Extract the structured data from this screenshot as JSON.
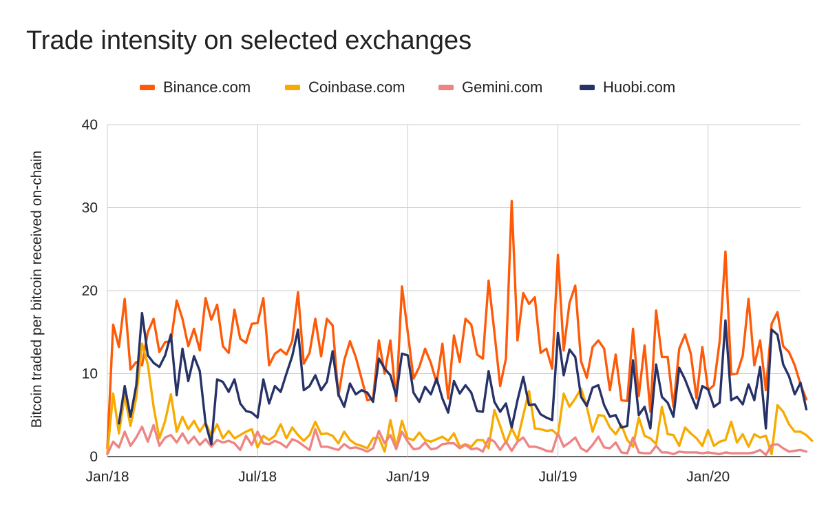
{
  "chart_data": {
    "type": "line",
    "title": "Trade intensity on selected exchanges",
    "xlabel": "",
    "ylabel": "Bitcoin traded per bitcoin received on-chain",
    "ylim": [
      0,
      40
    ],
    "yticks": [
      0,
      10,
      20,
      30,
      40
    ],
    "xticks": [
      {
        "label": "Jan/18",
        "week": 0
      },
      {
        "label": "Jul/18",
        "week": 26
      },
      {
        "label": "Jan/19",
        "week": 52
      },
      {
        "label": "Jul/19",
        "week": 78
      },
      {
        "label": "Jan/20",
        "week": 104
      }
    ],
    "x_axis_range_weeks": [
      0,
      120
    ],
    "grid": true,
    "legend_position": "top-center",
    "series": [
      {
        "name": "Binance.com",
        "color": "#fe5a08",
        "values": [
          1.0,
          15.9,
          13.2,
          19.0,
          10.5,
          11.4,
          11.0,
          15.0,
          16.6,
          12.6,
          13.8,
          13.9,
          18.8,
          16.6,
          13.3,
          15.4,
          12.8,
          19.1,
          16.5,
          18.3,
          13.3,
          12.5,
          17.7,
          14.2,
          13.7,
          16.0,
          16.1,
          19.1,
          11.0,
          12.4,
          12.9,
          12.3,
          13.9,
          19.8,
          11.2,
          12.5,
          16.6,
          12.1,
          16.6,
          15.8,
          7.3,
          11.6,
          13.9,
          12.0,
          9.4,
          6.8,
          7.0,
          14.0,
          10.0,
          14.0,
          6.7,
          20.5,
          15.0,
          9.4,
          10.8,
          13.0,
          11.3,
          8.9,
          13.6,
          7.0,
          14.6,
          11.4,
          16.6,
          15.9,
          12.3,
          11.8,
          21.2,
          15.0,
          8.5,
          11.8,
          30.8,
          14.0,
          19.7,
          18.4,
          19.2,
          12.5,
          13.0,
          10.6,
          24.3,
          12.8,
          18.5,
          20.6,
          11.5,
          9.5,
          13.2,
          14.0,
          13.0,
          8.0,
          12.3,
          6.8,
          6.7,
          15.4,
          7.3,
          13.4,
          5.4,
          17.6,
          12.0,
          12.0,
          6.0,
          13.0,
          14.7,
          12.4,
          7.0,
          13.2,
          8.0,
          8.6,
          13.9,
          24.7,
          9.9,
          10.0,
          12.2,
          19.0,
          11.0,
          14.0,
          8.0,
          16.0,
          17.4,
          13.3,
          12.6,
          11.0,
          8.7,
          6.9
        ],
        "x_start_week": 0,
        "x_step_weeks": 1
      },
      {
        "name": "Coinbase.com",
        "color": "#f7ab00",
        "values": [
          0.4,
          7.6,
          2.8,
          7.3,
          3.7,
          7.1,
          13.6,
          11.1,
          6.0,
          2.2,
          4.3,
          7.5,
          3.0,
          4.8,
          3.3,
          4.3,
          3.0,
          4.1,
          2.5,
          3.9,
          2.2,
          3.1,
          2.2,
          2.6,
          3.0,
          3.3,
          1.1,
          2.5,
          2.0,
          2.5,
          3.9,
          2.2,
          3.5,
          2.6,
          1.9,
          2.6,
          4.2,
          2.7,
          2.8,
          2.5,
          1.6,
          3.0,
          2.0,
          1.5,
          1.3,
          1.0,
          2.2,
          2.3,
          0.6,
          4.4,
          1.1,
          4.3,
          2.2,
          2.0,
          2.9,
          2.0,
          1.8,
          2.1,
          2.4,
          1.9,
          2.8,
          1.2,
          1.5,
          1.2,
          2.0,
          2.0,
          1.0,
          5.6,
          3.7,
          1.6,
          3.4,
          2.0,
          5.0,
          7.9,
          3.4,
          3.3,
          3.1,
          3.2,
          2.6,
          7.6,
          6.0,
          7.0,
          8.2,
          6.0,
          3.0,
          5.0,
          4.9,
          3.5,
          2.7,
          3.8,
          2.0,
          1.2,
          4.7,
          2.5,
          2.2,
          1.5,
          6.0,
          2.7,
          2.6,
          1.3,
          3.5,
          2.8,
          2.2,
          1.3,
          3.2,
          1.3,
          1.8,
          2.0,
          4.2,
          1.7,
          2.7,
          1.2,
          2.7,
          2.3,
          2.5,
          0.3,
          6.2,
          5.4,
          3.9,
          3.0,
          3.0,
          2.6,
          1.9
        ],
        "x_start_week": 0,
        "x_step_weeks": 1
      },
      {
        "name": "Gemini.com",
        "color": "#ee8484",
        "values": [
          0.3,
          1.8,
          1.1,
          3.0,
          1.3,
          2.3,
          3.6,
          1.8,
          3.8,
          1.3,
          2.3,
          2.6,
          1.7,
          2.8,
          1.6,
          2.4,
          1.4,
          2.1,
          1.2,
          2.0,
          1.7,
          1.9,
          1.6,
          0.8,
          2.5,
          1.4,
          3.0,
          1.6,
          1.5,
          1.9,
          1.6,
          1.1,
          2.1,
          1.8,
          1.3,
          0.8,
          3.3,
          1.2,
          1.2,
          1.0,
          0.8,
          1.5,
          1.0,
          1.1,
          0.9,
          0.6,
          1.0,
          3.1,
          1.6,
          2.6,
          0.9,
          3.0,
          1.8,
          0.9,
          1.0,
          1.7,
          0.9,
          1.0,
          1.5,
          1.6,
          1.6,
          1.0,
          1.4,
          0.9,
          1.0,
          0.6,
          2.2,
          1.8,
          0.8,
          1.8,
          0.7,
          1.8,
          2.3,
          1.2,
          1.2,
          1.0,
          0.7,
          0.6,
          2.8,
          1.2,
          1.7,
          2.3,
          1.0,
          0.6,
          1.4,
          2.4,
          1.1,
          1.0,
          1.7,
          0.5,
          0.4,
          2.3,
          0.5,
          0.4,
          0.4,
          1.3,
          0.5,
          0.5,
          0.3,
          0.6,
          0.5,
          0.5,
          0.5,
          0.4,
          0.5,
          0.4,
          0.3,
          0.5,
          0.4,
          0.4,
          0.4,
          0.4,
          0.5,
          0.8,
          0.2,
          1.4,
          1.5,
          1.0,
          0.6,
          0.7,
          0.8,
          0.6
        ],
        "x_start_week": 0,
        "x_step_weeks": 1
      },
      {
        "name": "Huobi.com",
        "color": "#263268",
        "values": [
          null,
          null,
          4.0,
          8.5,
          4.8,
          8.6,
          17.3,
          12.2,
          11.3,
          10.8,
          12.2,
          14.7,
          7.4,
          13.0,
          9.1,
          12.1,
          10.3,
          4.0,
          1.5,
          9.3,
          9.0,
          7.8,
          9.3,
          6.4,
          5.5,
          5.3,
          4.7,
          9.3,
          6.4,
          8.5,
          7.8,
          10.0,
          12.1,
          15.3,
          8.0,
          8.5,
          9.8,
          8.0,
          9.0,
          12.7,
          7.5,
          6.0,
          8.8,
          7.5,
          8.0,
          7.7,
          6.6,
          11.8,
          10.6,
          9.8,
          7.3,
          12.4,
          12.2,
          7.7,
          6.6,
          8.4,
          7.5,
          9.4,
          7.0,
          5.3,
          9.1,
          7.6,
          8.6,
          7.7,
          5.5,
          5.4,
          10.3,
          6.6,
          5.4,
          6.4,
          3.5,
          6.8,
          9.6,
          6.2,
          6.3,
          5.1,
          4.7,
          4.4,
          14.9,
          9.8,
          12.9,
          12.0,
          7.2,
          6.1,
          8.3,
          8.6,
          6.2,
          4.8,
          5.0,
          3.5,
          3.7,
          11.6,
          5.0,
          6.0,
          3.4,
          11.1,
          7.2,
          6.5,
          4.8,
          10.7,
          9.3,
          7.5,
          5.8,
          8.5,
          8.1,
          6.0,
          6.5,
          16.4,
          6.8,
          7.2,
          6.3,
          8.7,
          6.8,
          10.8,
          3.4,
          15.3,
          14.7,
          11.1,
          9.7,
          7.5,
          8.9,
          5.7
        ],
        "x_start_week": 0,
        "x_step_weeks": 1
      }
    ]
  }
}
